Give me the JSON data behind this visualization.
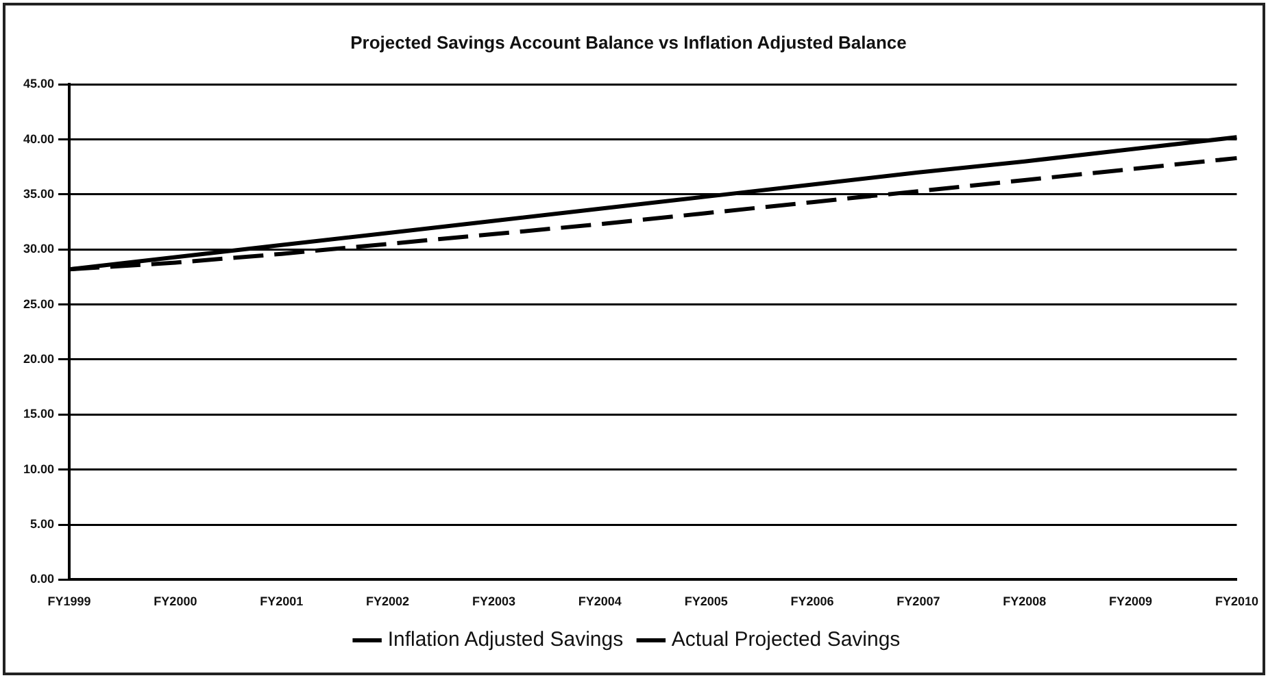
{
  "chart_data": {
    "type": "line",
    "title": "Projected Savings Account Balance vs Inflation Adjusted Balance",
    "categories": [
      "FY1999",
      "FY2000",
      "FY2001",
      "FY2002",
      "FY2003",
      "FY2004",
      "FY2005",
      "FY2006",
      "FY2007",
      "FY2008",
      "FY2009",
      "FY2010"
    ],
    "series": [
      {
        "name": "Inflation Adjusted Savings",
        "color": "#000000",
        "line_style": "dashed",
        "values": [
          28.2,
          28.8,
          29.6,
          30.5,
          31.4,
          32.3,
          33.3,
          34.3,
          35.3,
          36.3,
          37.3,
          38.3
        ]
      },
      {
        "name": "Actual Projected Savings",
        "color": "#000000",
        "line_style": "solid",
        "values": [
          28.2,
          29.3,
          30.4,
          31.5,
          32.6,
          33.7,
          34.8,
          35.9,
          37.0,
          38.0,
          39.1,
          40.2
        ]
      }
    ],
    "ylim": [
      0,
      45
    ],
    "yticks": [
      {
        "value": 0,
        "label": "0.00"
      },
      {
        "value": 5,
        "label": "5.00"
      },
      {
        "value": 10,
        "label": "10.00"
      },
      {
        "value": 15,
        "label": "15.00"
      },
      {
        "value": 20,
        "label": "20.00"
      },
      {
        "value": 25,
        "label": "25.00"
      },
      {
        "value": 30,
        "label": "30.00"
      },
      {
        "value": 35,
        "label": "35.00"
      },
      {
        "value": 40,
        "label": "40.00"
      },
      {
        "value": 45,
        "label": "45.00"
      }
    ],
    "grid": "y",
    "legend": "bottom",
    "marker": "none"
  }
}
